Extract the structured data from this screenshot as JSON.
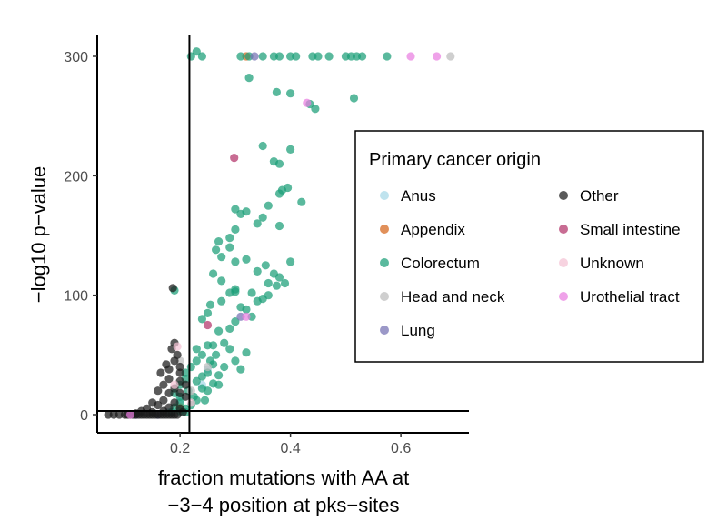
{
  "chart_data": {
    "type": "scatter",
    "title": "",
    "xlabel": [
      "fraction mutations with AA at",
      "−3−4 position at pks−sites"
    ],
    "ylabel": "−log10 p−value",
    "xlim": [
      0.05,
      0.72
    ],
    "ylim": [
      -12,
      318
    ],
    "x_ticks": [
      0.2,
      0.4,
      0.6
    ],
    "x_tick_labels": [
      "0.2",
      "0.4",
      "0.6"
    ],
    "y_ticks": [
      0,
      100,
      200,
      300
    ],
    "y_tick_labels": [
      "0",
      "100",
      "200",
      "300"
    ],
    "reference_lines": {
      "vertical_x": 0.217,
      "horizontal_y": 3
    },
    "grid": false,
    "legend": {
      "title": "Primary cancer origin",
      "placement": "right",
      "columns": 2
    },
    "series": [
      {
        "name": "Anus",
        "color": "#a6d8e8",
        "points": [
          [
            0.25,
            38
          ],
          [
            0.24,
            25
          ],
          [
            0.2,
            12
          ],
          [
            0.18,
            2
          ]
        ]
      },
      {
        "name": "Appendix",
        "color": "#d5651b",
        "points": [
          [
            0.32,
            300
          ],
          [
            0.2,
            6
          ]
        ]
      },
      {
        "name": "Colorectum",
        "color": "#1b9e77",
        "points": [
          [
            0.22,
            300
          ],
          [
            0.23,
            304
          ],
          [
            0.24,
            300
          ],
          [
            0.31,
            300
          ],
          [
            0.325,
            300
          ],
          [
            0.35,
            300
          ],
          [
            0.37,
            300
          ],
          [
            0.38,
            300
          ],
          [
            0.4,
            300
          ],
          [
            0.41,
            300
          ],
          [
            0.44,
            300
          ],
          [
            0.45,
            300
          ],
          [
            0.47,
            300
          ],
          [
            0.5,
            300
          ],
          [
            0.51,
            300
          ],
          [
            0.52,
            300
          ],
          [
            0.53,
            300
          ],
          [
            0.575,
            300
          ],
          [
            0.325,
            282
          ],
          [
            0.375,
            270
          ],
          [
            0.4,
            269
          ],
          [
            0.435,
            260
          ],
          [
            0.445,
            256
          ],
          [
            0.515,
            265
          ],
          [
            0.35,
            225
          ],
          [
            0.37,
            212
          ],
          [
            0.38,
            210
          ],
          [
            0.4,
            222
          ],
          [
            0.42,
            178
          ],
          [
            0.385,
            188
          ],
          [
            0.395,
            190
          ],
          [
            0.38,
            185
          ],
          [
            0.36,
            175
          ],
          [
            0.35,
            165
          ],
          [
            0.34,
            160
          ],
          [
            0.38,
            158
          ],
          [
            0.31,
            168
          ],
          [
            0.3,
            172
          ],
          [
            0.32,
            170
          ],
          [
            0.3,
            155
          ],
          [
            0.29,
            148
          ],
          [
            0.27,
            145
          ],
          [
            0.29,
            140
          ],
          [
            0.265,
            138
          ],
          [
            0.275,
            132
          ],
          [
            0.3,
            128
          ],
          [
            0.32,
            130
          ],
          [
            0.34,
            120
          ],
          [
            0.355,
            125
          ],
          [
            0.36,
            110
          ],
          [
            0.37,
            118
          ],
          [
            0.38,
            115
          ],
          [
            0.375,
            108
          ],
          [
            0.39,
            110
          ],
          [
            0.4,
            128
          ],
          [
            0.36,
            100
          ],
          [
            0.26,
            118
          ],
          [
            0.275,
            112
          ],
          [
            0.3,
            105
          ],
          [
            0.33,
            102
          ],
          [
            0.34,
            95
          ],
          [
            0.35,
            97
          ],
          [
            0.32,
            88
          ],
          [
            0.31,
            90
          ],
          [
            0.33,
            82
          ],
          [
            0.3,
            78
          ],
          [
            0.29,
            72
          ],
          [
            0.27,
            70
          ],
          [
            0.25,
            85
          ],
          [
            0.24,
            80
          ],
          [
            0.255,
            92
          ],
          [
            0.275,
            95
          ],
          [
            0.29,
            102
          ],
          [
            0.3,
            103
          ],
          [
            0.28,
            60
          ],
          [
            0.265,
            50
          ],
          [
            0.29,
            55
          ],
          [
            0.3,
            45
          ],
          [
            0.31,
            38
          ],
          [
            0.32,
            52
          ],
          [
            0.25,
            58
          ],
          [
            0.23,
            55
          ],
          [
            0.24,
            50
          ],
          [
            0.26,
            42
          ],
          [
            0.25,
            35
          ],
          [
            0.23,
            45
          ],
          [
            0.22,
            40
          ],
          [
            0.21,
            30
          ],
          [
            0.215,
            20
          ],
          [
            0.225,
            15
          ],
          [
            0.23,
            28
          ],
          [
            0.24,
            22
          ],
          [
            0.2,
            25
          ],
          [
            0.21,
            35
          ],
          [
            0.19,
            18
          ],
          [
            0.2,
            10
          ],
          [
            0.22,
            8
          ],
          [
            0.21,
            5
          ],
          [
            0.23,
            12
          ],
          [
            0.2,
            3
          ],
          [
            0.19,
            6
          ],
          [
            0.185,
            2
          ],
          [
            0.21,
            2
          ],
          [
            0.2,
            15
          ],
          [
            0.25,
            20
          ],
          [
            0.26,
            26
          ],
          [
            0.245,
            12
          ],
          [
            0.27,
            33
          ],
          [
            0.19,
            104
          ],
          [
            0.24,
            32
          ],
          [
            0.255,
            45
          ],
          [
            0.26,
            58
          ],
          [
            0.28,
            40
          ],
          [
            0.27,
            25
          ]
        ]
      },
      {
        "name": "Head and neck",
        "color": "#bdbdbd",
        "points": [
          [
            0.69,
            300
          ],
          [
            0.2,
            45
          ],
          [
            0.25,
            40
          ],
          [
            0.22,
            20
          ]
        ]
      },
      {
        "name": "Lung",
        "color": "#7570b3",
        "points": [
          [
            0.335,
            300
          ],
          [
            0.31,
            82
          ],
          [
            0.16,
            0
          ],
          [
            0.12,
            0
          ]
        ]
      },
      {
        "name": "Other",
        "color": "#1a1a1a",
        "points": [
          [
            0.187,
            106
          ],
          [
            0.19,
            60
          ],
          [
            0.185,
            55
          ],
          [
            0.19,
            45
          ],
          [
            0.175,
            42
          ],
          [
            0.2,
            40
          ],
          [
            0.165,
            35
          ],
          [
            0.18,
            30
          ],
          [
            0.2,
            28
          ],
          [
            0.17,
            25
          ],
          [
            0.19,
            22
          ],
          [
            0.16,
            20
          ],
          [
            0.18,
            18
          ],
          [
            0.2,
            18
          ],
          [
            0.21,
            15
          ],
          [
            0.17,
            12
          ],
          [
            0.19,
            10
          ],
          [
            0.15,
            10
          ],
          [
            0.16,
            8
          ],
          [
            0.18,
            6
          ],
          [
            0.2,
            5
          ],
          [
            0.14,
            5
          ],
          [
            0.13,
            3
          ],
          [
            0.15,
            2
          ],
          [
            0.17,
            3
          ],
          [
            0.12,
            1
          ],
          [
            0.1,
            0
          ],
          [
            0.11,
            0
          ],
          [
            0.12,
            0
          ],
          [
            0.13,
            0
          ],
          [
            0.14,
            0
          ],
          [
            0.15,
            0
          ],
          [
            0.16,
            0
          ],
          [
            0.17,
            0
          ],
          [
            0.18,
            0
          ],
          [
            0.19,
            0
          ],
          [
            0.08,
            0
          ],
          [
            0.09,
            0
          ],
          [
            0.07,
            0
          ],
          [
            0.105,
            0
          ],
          [
            0.115,
            0
          ],
          [
            0.125,
            0
          ],
          [
            0.135,
            0
          ],
          [
            0.145,
            0
          ],
          [
            0.155,
            0
          ],
          [
            0.165,
            0
          ],
          [
            0.175,
            0
          ],
          [
            0.185,
            0
          ],
          [
            0.195,
            0
          ],
          [
            0.205,
            2
          ],
          [
            0.2,
            35
          ],
          [
            0.195,
            50
          ],
          [
            0.18,
            38
          ],
          [
            0.21,
            25
          ]
        ]
      },
      {
        "name": "Small intestine",
        "color": "#b3336a",
        "points": [
          [
            0.298,
            215
          ],
          [
            0.25,
            75
          ]
        ]
      },
      {
        "name": "Unknown",
        "color": "#f4c2d4",
        "points": [
          [
            0.195,
            57
          ],
          [
            0.19,
            25
          ],
          [
            0.22,
            10
          ]
        ]
      },
      {
        "name": "Urothelial tract",
        "color": "#e97ee0",
        "points": [
          [
            0.618,
            300
          ],
          [
            0.665,
            300
          ],
          [
            0.43,
            261
          ],
          [
            0.32,
            82
          ],
          [
            0.11,
            0
          ]
        ]
      }
    ]
  }
}
